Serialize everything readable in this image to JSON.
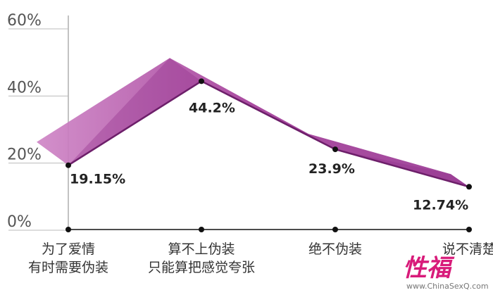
{
  "chart_data": {
    "type": "line",
    "title": "",
    "xlabel": "",
    "ylabel": "",
    "ylim": [
      0,
      60
    ],
    "y_ticks": [
      "0%",
      "20%",
      "40%",
      "60%"
    ],
    "y_tick_values": [
      0,
      20,
      40,
      60
    ],
    "grid": false,
    "categories": [
      [
        "为了爱情",
        "有时需要伪装"
      ],
      [
        "算不上伪装",
        "只能算把感觉夸张"
      ],
      [
        "绝不伪装"
      ],
      [
        "说不清楚"
      ]
    ],
    "values": [
      19.15,
      44.2,
      23.9,
      12.74
    ],
    "value_labels": [
      "19.15%",
      "44.2%",
      "23.9%",
      "12.74%"
    ],
    "colors": {
      "ribbon_light": "#c87ac0",
      "ribbon_dark": "#8e2d8a",
      "axis": "#999999",
      "marker": "#111111"
    }
  },
  "watermark": {
    "logo_text": "性福",
    "url_text": "www.ChinaSexQ.com"
  }
}
